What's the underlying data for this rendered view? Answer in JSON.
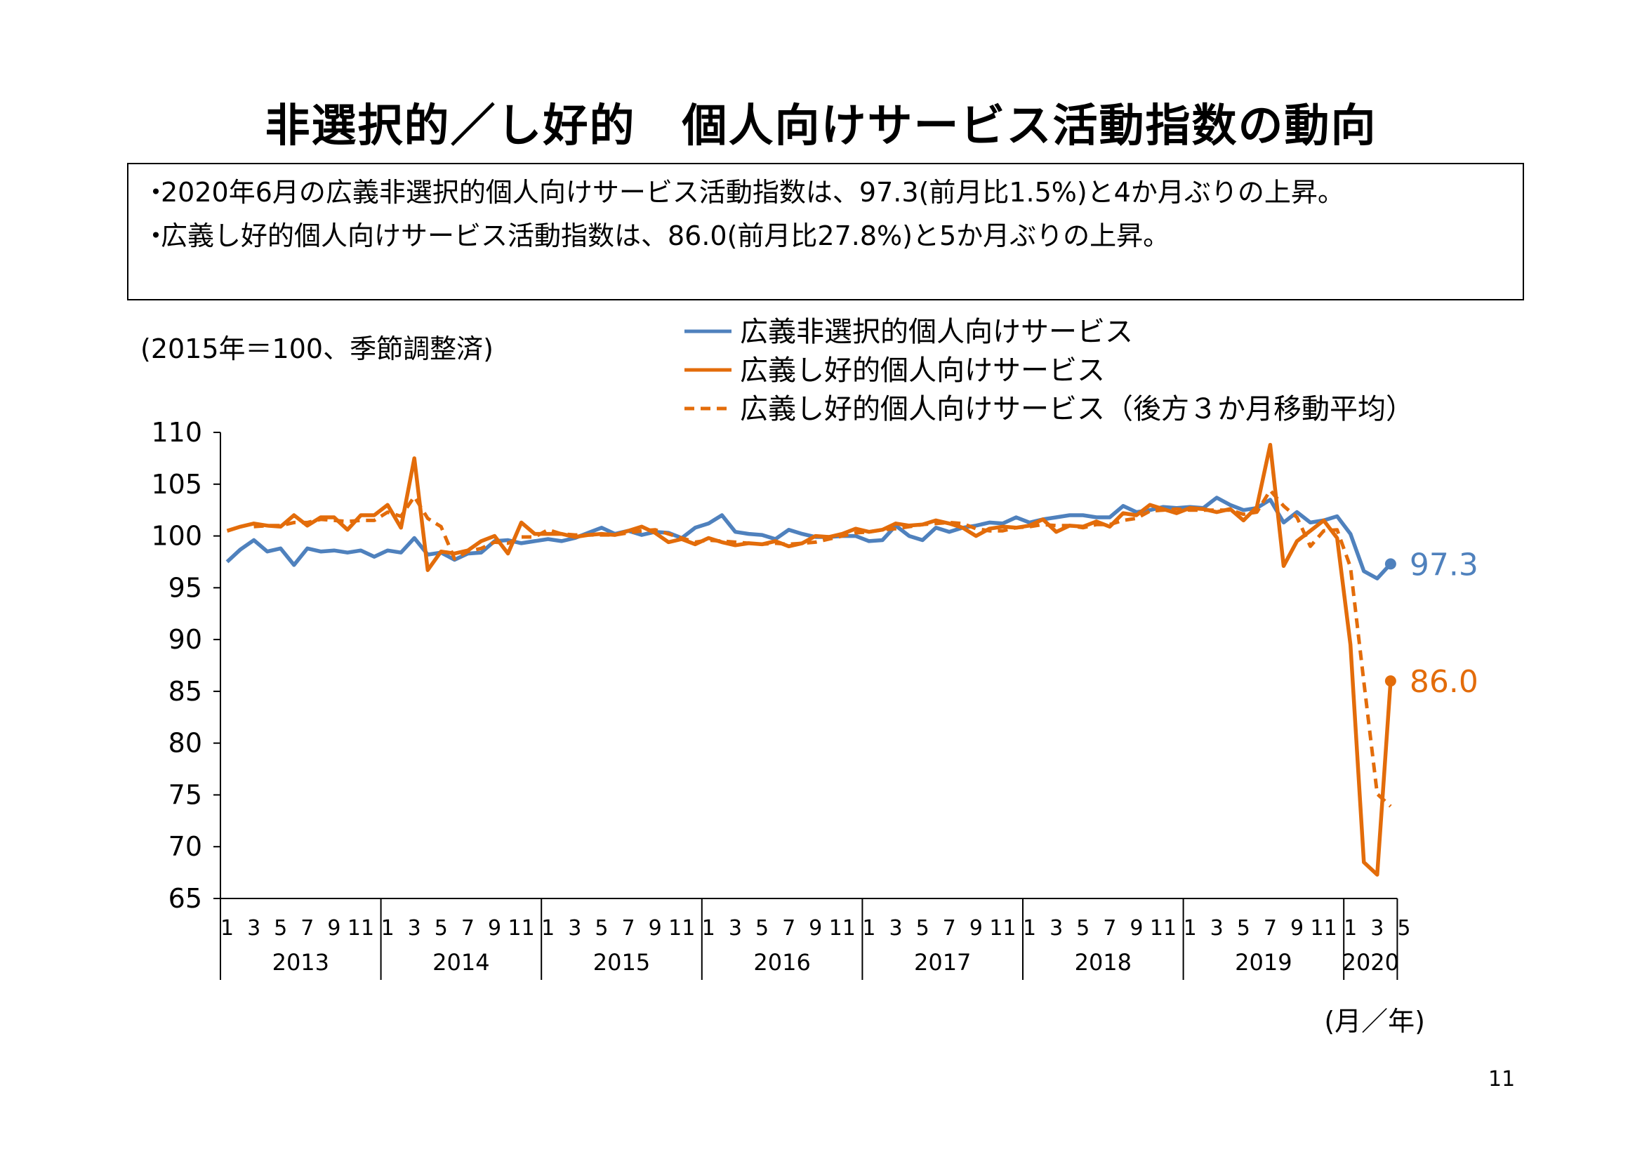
{
  "page": {
    "title": "非選択的／し好的　個人向けサービス活動指数の動向",
    "summary": [
      "2020年6月の広義非選択的個人向けサービス活動指数は、97.3(前月比1.5%)と4か月ぶりの上昇。",
      "広義し好的個人向けサービス活動指数は、86.0(前月比27.8%)と5か月ぶりの上昇。"
    ],
    "bullet": "・",
    "page_number": "11"
  },
  "chart_data": {
    "type": "line",
    "unit_note": "(2015年＝100、季節調整済)",
    "xlabel": "(月／年)",
    "ylim": [
      65,
      110
    ],
    "yticks": [
      110,
      105,
      100,
      95,
      90,
      85,
      80,
      75,
      70,
      65
    ],
    "years": [
      "2013",
      "2014",
      "2015",
      "2016",
      "2017",
      "2018",
      "2019",
      "2020"
    ],
    "month_ticks": [
      "1",
      "3",
      "5",
      "7",
      "9",
      "11"
    ],
    "month_ticks_2020": [
      "1",
      "3",
      "5"
    ],
    "colors": {
      "blue": "#4f81bd",
      "orange": "#e36c0a"
    },
    "series": [
      {
        "name": "広義非選択的個人向けサービス",
        "color": "#4f81bd",
        "style": "solid",
        "end_label": "97.3",
        "values": [
          97.5,
          98.7,
          99.6,
          98.5,
          98.8,
          97.2,
          98.8,
          98.5,
          98.6,
          98.4,
          98.6,
          98.0,
          98.6,
          98.4,
          99.8,
          98.2,
          98.4,
          97.7,
          98.3,
          98.4,
          99.5,
          99.6,
          99.3,
          99.5,
          99.7,
          99.5,
          99.8,
          100.3,
          100.8,
          100.2,
          100.5,
          100.1,
          100.4,
          100.3,
          99.8,
          100.8,
          101.2,
          102.0,
          100.4,
          100.2,
          100.1,
          99.7,
          100.6,
          100.2,
          99.9,
          99.9,
          100.0,
          100.0,
          99.5,
          99.6,
          101.0,
          100.0,
          99.6,
          100.8,
          100.4,
          100.8,
          101.0,
          101.3,
          101.2,
          101.8,
          101.3,
          101.6,
          101.8,
          102.0,
          102.0,
          101.8,
          101.8,
          102.9,
          102.3,
          102.5,
          102.8,
          102.7,
          102.8,
          102.7,
          103.7,
          103.0,
          102.5,
          102.7,
          103.5,
          101.3,
          102.3,
          101.3,
          101.5,
          101.9,
          100.2,
          96.6,
          95.9,
          97.3
        ]
      },
      {
        "name": "広義し好的個人向けサービス",
        "color": "#e36c0a",
        "style": "solid",
        "end_label": "86.0",
        "values": [
          100.5,
          100.9,
          101.2,
          101.0,
          100.9,
          102.0,
          101.0,
          101.8,
          101.8,
          100.6,
          102.0,
          102.0,
          103.0,
          100.8,
          107.5,
          96.7,
          98.5,
          98.3,
          98.6,
          99.5,
          100.0,
          98.3,
          101.3,
          100.2,
          100.2,
          100.2,
          99.9,
          100.1,
          100.2,
          100.1,
          100.5,
          100.9,
          100.3,
          99.4,
          99.7,
          99.2,
          99.8,
          99.4,
          99.1,
          99.3,
          99.2,
          99.5,
          99.0,
          99.3,
          100.0,
          99.9,
          100.2,
          100.7,
          100.4,
          100.6,
          101.2,
          101.0,
          101.1,
          101.5,
          101.2,
          100.8,
          100.0,
          100.7,
          100.9,
          100.8,
          101.0,
          101.6,
          100.4,
          101.0,
          100.9,
          101.4,
          100.9,
          102.2,
          102.0,
          103.0,
          102.6,
          102.2,
          102.7,
          102.6,
          102.3,
          102.6,
          101.5,
          102.8,
          108.8,
          97.1,
          99.5,
          100.5,
          101.5,
          99.8,
          89.5,
          68.5,
          67.3,
          86.0
        ]
      },
      {
        "name": "広義し好的個人向けサービス（後方３か月移動平均）",
        "color": "#e36c0a",
        "style": "dashed",
        "values": [
          null,
          null,
          100.9,
          101.0,
          101.0,
          101.3,
          101.3,
          101.6,
          101.5,
          101.4,
          101.5,
          101.5,
          102.3,
          101.9,
          103.8,
          101.7,
          100.9,
          97.8,
          98.5,
          98.8,
          99.4,
          99.3,
          99.9,
          99.9,
          100.6,
          100.2,
          100.1,
          100.1,
          100.1,
          100.1,
          100.3,
          100.5,
          100.6,
          100.2,
          99.8,
          99.4,
          99.6,
          99.5,
          99.4,
          99.3,
          99.2,
          99.3,
          99.2,
          99.3,
          99.4,
          99.7,
          100.0,
          100.3,
          100.4,
          100.6,
          100.7,
          100.9,
          101.1,
          101.2,
          101.3,
          101.2,
          100.7,
          100.5,
          100.5,
          100.8,
          100.9,
          101.1,
          101.0,
          101.0,
          100.8,
          101.1,
          101.1,
          101.5,
          101.7,
          102.4,
          102.5,
          102.6,
          102.5,
          102.5,
          102.5,
          102.5,
          102.1,
          102.3,
          104.4,
          102.9,
          101.8,
          99.0,
          100.5,
          100.6,
          97.0,
          85.9,
          75.1,
          73.9
        ]
      }
    ]
  }
}
